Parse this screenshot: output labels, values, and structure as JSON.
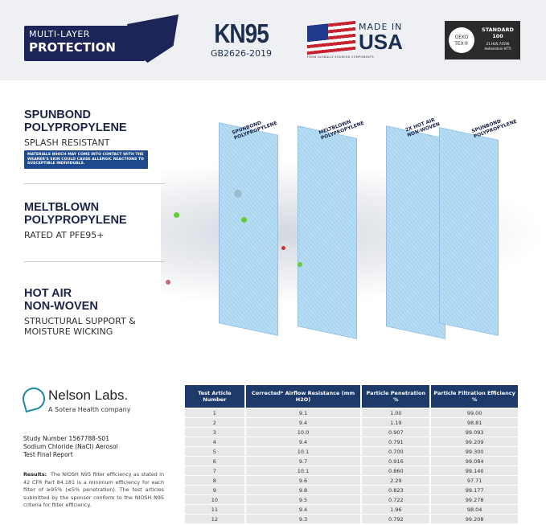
{
  "header": {
    "multi_layer": {
      "line1": "MULTI-LAYER",
      "line2": "PROTECTION"
    },
    "kn95": {
      "title": "KN95",
      "standard": "GB2626-2019"
    },
    "usa": {
      "made_in": "MADE IN",
      "usa": "USA",
      "footnote": "FROM GLOBALLY SOURCED COMPONENTS"
    },
    "oeko": {
      "logo": "OEKO TEX®",
      "standard": "STANDARD 100",
      "number": "21.HUS.74590",
      "institute": "Hohenstein HTTI"
    }
  },
  "sections": [
    {
      "title1": "SPUNBOND",
      "title2": "POLYPROPYLENE",
      "subtitle": "SPLASH RESISTANT",
      "note": "MATERIALS WHICH MAY COME INTO CONTACT WITH THE WEARER'S SKIN COULD CAUSE ALLERGIC REACTIONS TO SUSCEPTIBLE INDIVIDUALS."
    },
    {
      "title1": "MELTBLOWN",
      "title2": "POLYPROPYLENE",
      "subtitle": "RATED AT PFE95+"
    },
    {
      "title1": "HOT AIR",
      "title2": "NON-WOVEN",
      "subtitle": "STRUCTURAL SUPPORT & MOISTURE WICKING"
    }
  ],
  "layers": [
    "SPUNBOND POLYPROPYLENE",
    "MELTBLOWN POLYPROPYLENE",
    "2X HOT AIR NON-WOVEN",
    "SPUNBOND POLYPROPYLENE"
  ],
  "lab": {
    "name": "Nelson Labs.",
    "tagline": "A Sotera Health company",
    "study": [
      "Study Number 1567788-S01",
      "Sodium Chloride (NaCl) Aerosol",
      "Test Final Report"
    ],
    "results_label": "Results:",
    "results_text": "The NIOSH N95 filter efficiency as stated in 42 CFR Part 84.181 is a minimum efficiency for each filter of ≥95% (≤5% penetration). The test articles submitted by the sponsor conform to the NIOSH N95 criteria for filter efficiency."
  },
  "table": {
    "headers": [
      "Test Article Number",
      "Corrected* Airflow Resistance (mm H2O)",
      "Particle Penetration %",
      "Particle Filtration Efficiency %"
    ],
    "rows": [
      [
        "1",
        "9.1",
        "1.00",
        "99.00"
      ],
      [
        "2",
        "9.4",
        "1.19",
        "98.81"
      ],
      [
        "3",
        "10.0",
        "0.907",
        "99.093"
      ],
      [
        "4",
        "9.4",
        "0.791",
        "99.209"
      ],
      [
        "5",
        "10.1",
        "0.700",
        "99.300"
      ],
      [
        "6",
        "9.7",
        "0.916",
        "99.084"
      ],
      [
        "7",
        "10.1",
        "0.860",
        "99.140"
      ],
      [
        "8",
        "9.6",
        "2.29",
        "97.71"
      ],
      [
        "9",
        "9.8",
        "0.823",
        "99.177"
      ],
      [
        "10",
        "9.5",
        "0.722",
        "99.278"
      ],
      [
        "11",
        "9.4",
        "1.96",
        "98.04"
      ],
      [
        "12",
        "9.3",
        "0.792",
        "99.208"
      ]
    ]
  }
}
